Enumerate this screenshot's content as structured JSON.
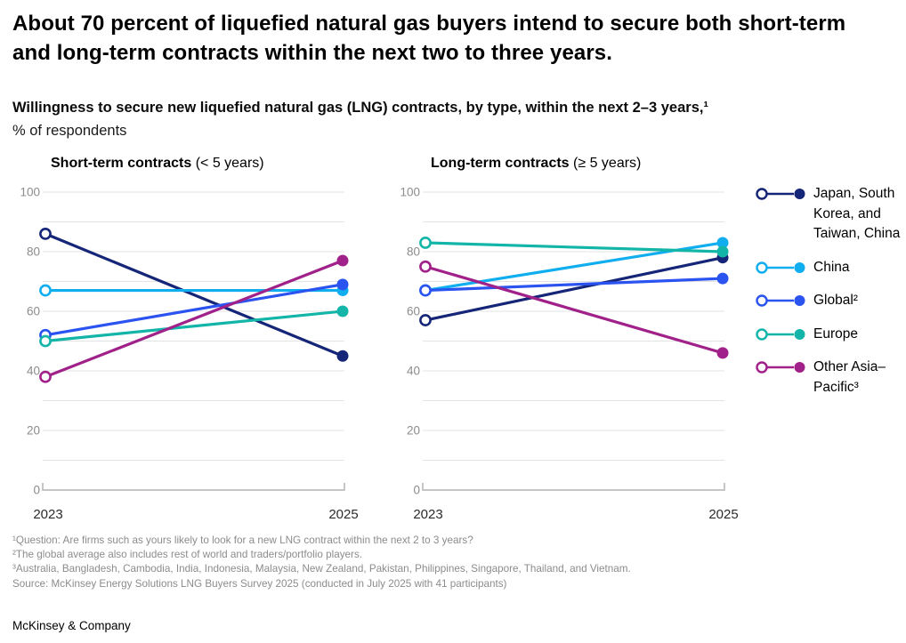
{
  "header": {
    "title": "About 70 percent of liquefied natural gas buyers intend to secure both short-term and long-term contracts within the next two to three years.",
    "subtitle": "Willingness to secure new liquefied natural gas (LNG) contracts, by type, within the next 2–3 years,¹",
    "subtitle_sub": "% of respondents"
  },
  "theme": {
    "grid_color": "#E3E3E3",
    "axis_color": "#B3B3B3",
    "tick_label_color": "#8C8C8C"
  },
  "chart_data": [
    {
      "type": "line",
      "title_bold": "Short-term contracts",
      "title_suffix": " (< 5 years)",
      "categories": [
        "2023",
        "2025"
      ],
      "ylabel": "% of respondents",
      "ylim": [
        0,
        100
      ],
      "grid_step": 10,
      "ytick_labels": [
        "0",
        "20",
        "40",
        "60",
        "80",
        "100"
      ],
      "legend_position": "right",
      "series": [
        {
          "name": "Japan, South Korea, and Taiwan, China",
          "color": "#152577",
          "values": [
            86,
            45
          ]
        },
        {
          "name": "China",
          "color": "#10AEEF",
          "values": [
            67,
            67
          ]
        },
        {
          "name": "Global²",
          "color": "#2B53F0",
          "values": [
            52,
            69
          ]
        },
        {
          "name": "Europe",
          "color": "#12B5A8",
          "values": [
            50,
            60
          ]
        },
        {
          "name": "Other Asia–Pacific³",
          "color": "#A02189",
          "values": [
            38,
            77
          ]
        }
      ]
    },
    {
      "type": "line",
      "title_bold": "Long-term contracts",
      "title_suffix": " (≥ 5 years)",
      "categories": [
        "2023",
        "2025"
      ],
      "ylabel": "% of respondents",
      "ylim": [
        0,
        100
      ],
      "grid_step": 10,
      "ytick_labels": [
        "0",
        "20",
        "40",
        "60",
        "80",
        "100"
      ],
      "legend_position": "right",
      "series": [
        {
          "name": "Japan, South Korea, and Taiwan, China",
          "color": "#152577",
          "values": [
            57,
            78
          ]
        },
        {
          "name": "China",
          "color": "#10AEEF",
          "values": [
            67,
            83
          ]
        },
        {
          "name": "Global²",
          "color": "#2B53F0",
          "values": [
            67,
            71
          ]
        },
        {
          "name": "Europe",
          "color": "#12B5A8",
          "values": [
            83,
            80
          ]
        },
        {
          "name": "Other Asia–Pacific³",
          "color": "#A02189",
          "values": [
            75,
            46
          ]
        }
      ]
    }
  ],
  "legend": {
    "items": [
      {
        "label": "Japan, South Korea, and Taiwan, China",
        "color": "#152577"
      },
      {
        "label": "China",
        "color": "#10AEEF"
      },
      {
        "label": "Global²",
        "color": "#2B53F0"
      },
      {
        "label": "Europe",
        "color": "#12B5A8"
      },
      {
        "label": "Other Asia–Pacific³",
        "color": "#A02189"
      }
    ]
  },
  "footnotes": {
    "lines": [
      "¹Question: Are firms such as yours likely to look for a new LNG contract within the next 2 to 3 years?",
      "²The global average also includes rest of world and traders/portfolio players.",
      "³Australia, Bangladesh, Cambodia, India, Indonesia, Malaysia, New Zealand, Pakistan, Philippines, Singapore, Thailand, and Vietnam.",
      "Source: McKinsey Energy Solutions LNG Buyers Survey 2025 (conducted in July 2025 with 41 participants)"
    ]
  },
  "footer": {
    "brand": "McKinsey & Company"
  }
}
